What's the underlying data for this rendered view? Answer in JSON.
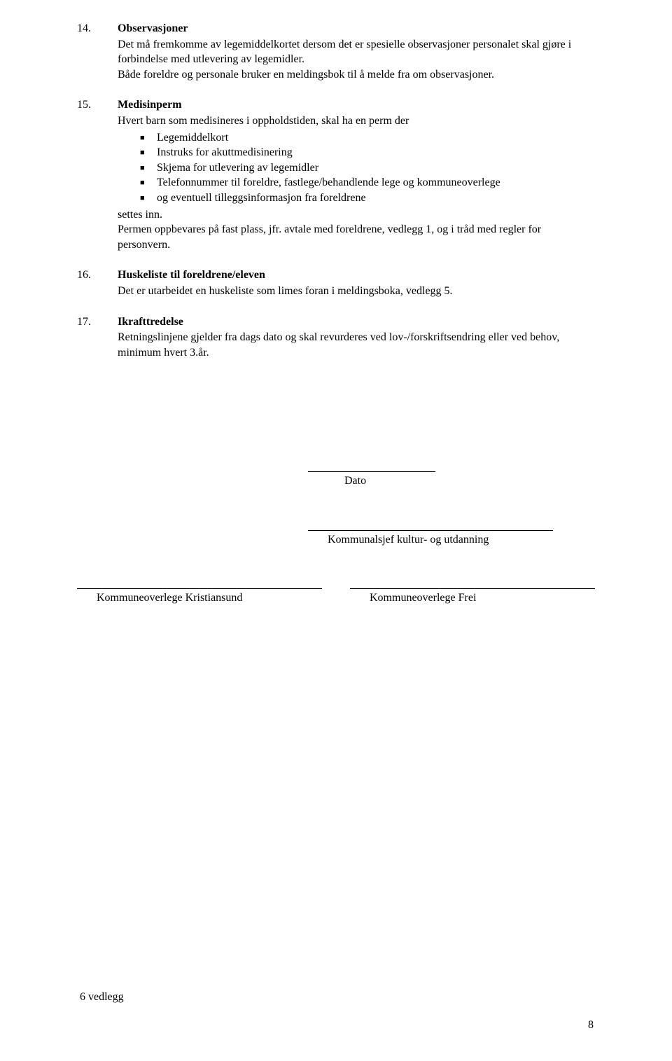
{
  "sections": [
    {
      "number": "14.",
      "heading": "Observasjoner",
      "body": "Det må fremkomme av legemiddelkortet dersom det er spesielle observasjoner personalet skal gjøre i forbindelse med utlevering av legemidler.\nBåde foreldre og personale bruker en meldingsbok til å melde fra om observasjoner."
    },
    {
      "number": "15.",
      "heading": "Medisinperm",
      "intro": "Hvert barn som medisineres i oppholdstiden, skal ha en perm der",
      "bullets": [
        "Legemiddelkort",
        "Instruks for akuttmedisinering",
        "Skjema for utlevering av legemidler",
        "Telefonnummer til foreldre, fastlege/behandlende lege og kommuneoverlege",
        "og eventuell tilleggsinformasjon fra foreldrene"
      ],
      "after": "settes inn.\nPermen oppbevares på fast plass, jfr. avtale med foreldrene, vedlegg 1, og i tråd med regler for personvern."
    },
    {
      "number": "16.",
      "heading": "Huskeliste til foreldrene/eleven",
      "body": "Det er utarbeidet en huskeliste som limes foran i meldingsboka, vedlegg 5."
    },
    {
      "number": "17.",
      "heading": "Ikrafttredelse",
      "body": "Retningslinjene gjelder fra dags dato og skal revurderes ved lov-/forskriftsendring eller ved behov, minimum hvert 3.år."
    }
  ],
  "signatures": {
    "date_label": "Dato",
    "kommunalsjef_label": "Kommunalsjef  kultur- og utdanning",
    "left_label": "Kommuneoverlege Kristiansund",
    "right_label": "Kommuneoverlege Frei"
  },
  "footer": {
    "attachments": "6 vedlegg",
    "page_number": "8"
  }
}
